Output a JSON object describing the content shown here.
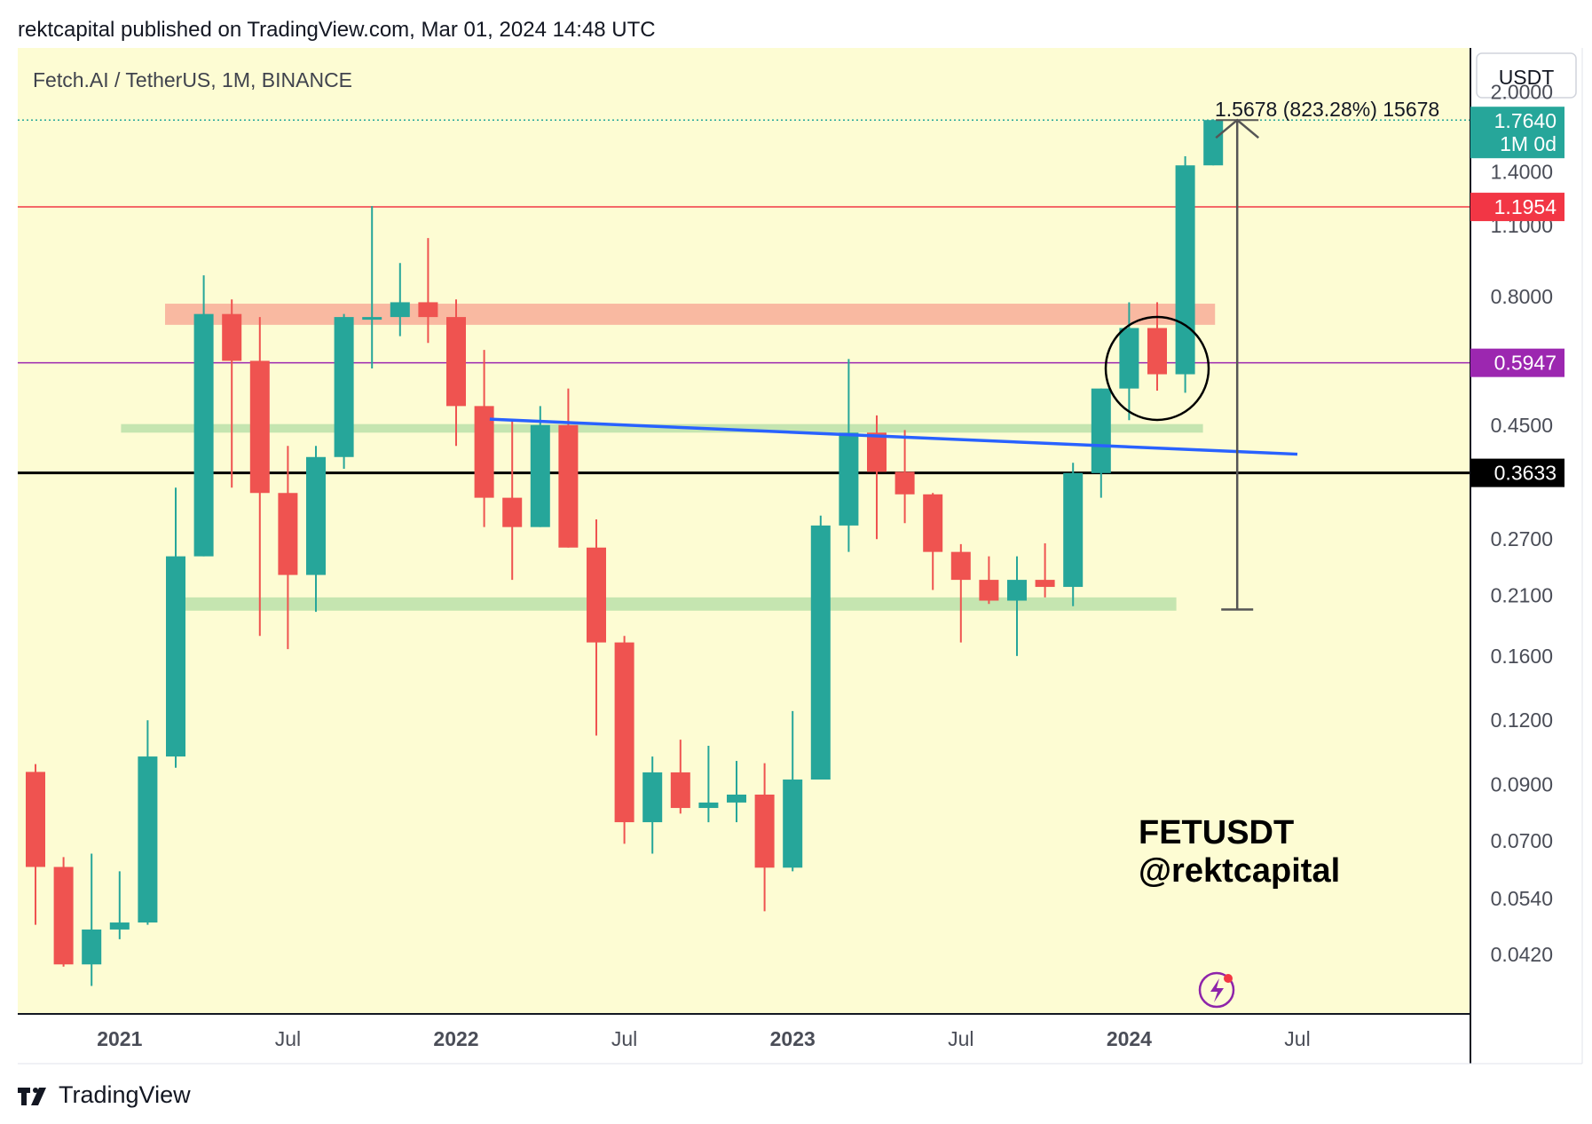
{
  "header": {
    "publisher_line": "rektcapital published on TradingView.com, Mar 01, 2024 14:48 UTC"
  },
  "chart_data": {
    "type": "candlestick",
    "title": "Fetch.AI / TetherUS, 1M, BINANCE",
    "currency_button": "USDT",
    "scale": "log",
    "ylim": [
      0.036,
      2.25
    ],
    "y_ticks": [
      "2.0000",
      "1.4000",
      "1.1000",
      "0.8000",
      "0.4500",
      "0.2700",
      "0.2100",
      "0.1600",
      "0.1200",
      "0.0900",
      "0.0700",
      "0.0540",
      "0.0420"
    ],
    "x_ticks": [
      "2021",
      "Jul",
      "2022",
      "Jul",
      "2023",
      "Jul",
      "2024",
      "Jul"
    ],
    "measure_label": "1.5678 (823.28%) 15678",
    "price_tags": [
      {
        "label": "1.7640",
        "sublabel": "1M 0d",
        "value": 1.764,
        "color": "#26a69a"
      },
      {
        "label": "1.1954",
        "value": 1.1954,
        "color": "#f23645"
      },
      {
        "label": "0.5947",
        "value": 0.5947,
        "color": "#9c27b0"
      },
      {
        "label": "0.3633",
        "value": 0.3633,
        "color": "#000000"
      }
    ],
    "watermark_symbol": "FETUSDT",
    "watermark_author": "@rektcapital",
    "colors": {
      "up": "#26a69a",
      "down": "#ef5350",
      "resistance_zone": "#f9b9a1",
      "support_zone": "#c5e5b0",
      "trendline": "#2962ff"
    },
    "candles_monthly_from": "2020-10",
    "candles": [
      {
        "o": 0.0952,
        "h": 0.0986,
        "l": 0.048,
        "c": 0.0622
      },
      {
        "o": 0.0622,
        "h": 0.065,
        "l": 0.0398,
        "c": 0.0402
      },
      {
        "o": 0.0402,
        "h": 0.066,
        "l": 0.0365,
        "c": 0.047
      },
      {
        "o": 0.047,
        "h": 0.061,
        "l": 0.045,
        "c": 0.0485
      },
      {
        "o": 0.0485,
        "h": 0.12,
        "l": 0.048,
        "c": 0.102
      },
      {
        "o": 0.102,
        "h": 0.34,
        "l": 0.097,
        "c": 0.25
      },
      {
        "o": 0.25,
        "h": 0.88,
        "l": 0.25,
        "c": 0.74
      },
      {
        "o": 0.74,
        "h": 0.79,
        "l": 0.34,
        "c": 0.6
      },
      {
        "o": 0.6,
        "h": 0.73,
        "l": 0.175,
        "c": 0.332
      },
      {
        "o": 0.332,
        "h": 0.41,
        "l": 0.165,
        "c": 0.23
      },
      {
        "o": 0.23,
        "h": 0.41,
        "l": 0.195,
        "c": 0.39
      },
      {
        "o": 0.39,
        "h": 0.74,
        "l": 0.37,
        "c": 0.73
      },
      {
        "o": 0.73,
        "h": 1.2,
        "l": 0.58,
        "c": 0.73
      },
      {
        "o": 0.73,
        "h": 0.93,
        "l": 0.67,
        "c": 0.78
      },
      {
        "o": 0.78,
        "h": 1.04,
        "l": 0.65,
        "c": 0.73
      },
      {
        "o": 0.73,
        "h": 0.79,
        "l": 0.41,
        "c": 0.49
      },
      {
        "o": 0.49,
        "h": 0.63,
        "l": 0.285,
        "c": 0.325
      },
      {
        "o": 0.325,
        "h": 0.46,
        "l": 0.225,
        "c": 0.285
      },
      {
        "o": 0.285,
        "h": 0.49,
        "l": 0.285,
        "c": 0.45
      },
      {
        "o": 0.45,
        "h": 0.53,
        "l": 0.26,
        "c": 0.26
      },
      {
        "o": 0.26,
        "h": 0.295,
        "l": 0.112,
        "c": 0.17
      },
      {
        "o": 0.17,
        "h": 0.175,
        "l": 0.069,
        "c": 0.076
      },
      {
        "o": 0.076,
        "h": 0.102,
        "l": 0.066,
        "c": 0.095
      },
      {
        "o": 0.095,
        "h": 0.11,
        "l": 0.079,
        "c": 0.081
      },
      {
        "o": 0.081,
        "h": 0.107,
        "l": 0.076,
        "c": 0.083
      },
      {
        "o": 0.083,
        "h": 0.1,
        "l": 0.076,
        "c": 0.086
      },
      {
        "o": 0.086,
        "h": 0.099,
        "l": 0.051,
        "c": 0.062
      },
      {
        "o": 0.062,
        "h": 0.125,
        "l": 0.061,
        "c": 0.092
      },
      {
        "o": 0.092,
        "h": 0.3,
        "l": 0.092,
        "c": 0.287
      },
      {
        "o": 0.287,
        "h": 0.605,
        "l": 0.255,
        "c": 0.435
      },
      {
        "o": 0.435,
        "h": 0.47,
        "l": 0.27,
        "c": 0.365
      },
      {
        "o": 0.365,
        "h": 0.44,
        "l": 0.29,
        "c": 0.33
      },
      {
        "o": 0.33,
        "h": 0.332,
        "l": 0.215,
        "c": 0.255
      },
      {
        "o": 0.255,
        "h": 0.264,
        "l": 0.17,
        "c": 0.225
      },
      {
        "o": 0.225,
        "h": 0.25,
        "l": 0.202,
        "c": 0.205
      },
      {
        "o": 0.205,
        "h": 0.25,
        "l": 0.16,
        "c": 0.225
      },
      {
        "o": 0.225,
        "h": 0.265,
        "l": 0.208,
        "c": 0.218
      },
      {
        "o": 0.218,
        "h": 0.38,
        "l": 0.2,
        "c": 0.363
      },
      {
        "o": 0.363,
        "h": 0.53,
        "l": 0.325,
        "c": 0.53
      },
      {
        "o": 0.53,
        "h": 0.78,
        "l": 0.46,
        "c": 0.695
      },
      {
        "o": 0.695,
        "h": 0.78,
        "l": 0.525,
        "c": 0.565
      },
      {
        "o": 0.565,
        "h": 1.5,
        "l": 0.52,
        "c": 1.44
      },
      {
        "o": 1.44,
        "h": 1.77,
        "l": 1.44,
        "c": 1.764
      }
    ],
    "annotations": {
      "resistance_zone": [
        0.705,
        0.775
      ],
      "support_zone_upper": [
        0.435,
        0.452
      ],
      "support_zone_lower": [
        0.196,
        0.208
      ],
      "trendline": [
        [
          2022.1,
          0.462
        ],
        [
          2024.5,
          0.395
        ]
      ],
      "measure_arrow": [
        0.197,
        1.764
      ]
    }
  },
  "footer": {
    "brand": "TradingView"
  }
}
